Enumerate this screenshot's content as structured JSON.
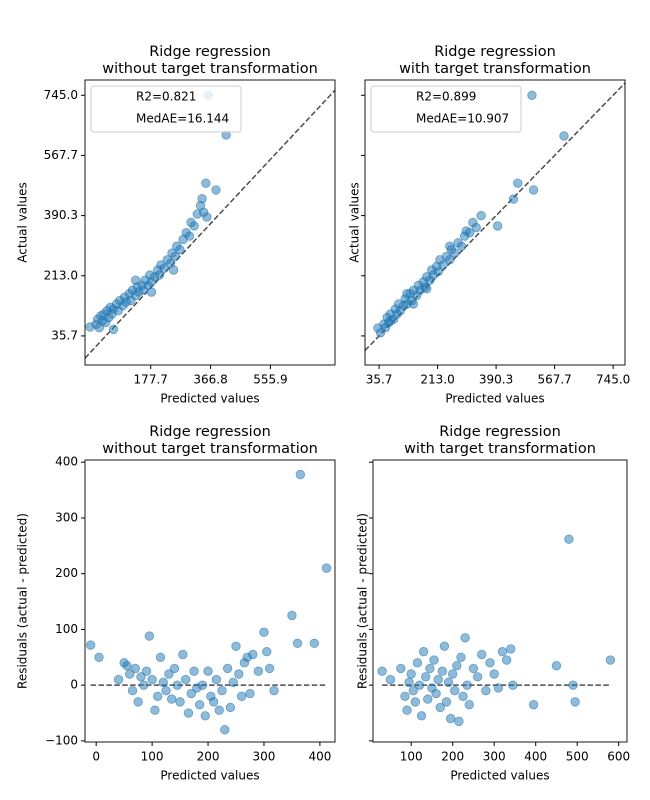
{
  "chart_data": [
    {
      "type": "scatter",
      "title": [
        "Ridge regression",
        "without target transformation"
      ],
      "x_label": "Predicted values",
      "y_label": "Actual values",
      "legend": [
        "R2=0.821",
        "MedAE=16.144"
      ],
      "legend_loc": "upper left",
      "reference": "diagonal",
      "color": "#1f77b4",
      "show_ytick_labels": true,
      "xlim": [
        -30,
        760
      ],
      "ylim": [
        -50,
        790
      ],
      "xticks": [
        177.7,
        366.8,
        555.9
      ],
      "yticks": [
        35.7,
        {
          "value": 213,
          "label": "213.0"
        },
        390.3,
        567.7,
        {
          "value": 745,
          "label": "745.0"
        }
      ],
      "x": [
        -14,
        5,
        10,
        15,
        20,
        25,
        30,
        35,
        40,
        45,
        50,
        55,
        60,
        70,
        75,
        80,
        90,
        95,
        100,
        110,
        115,
        120,
        130,
        135,
        140,
        150,
        155,
        160,
        170,
        175,
        180,
        190,
        200,
        205,
        210,
        220,
        230,
        240,
        245,
        255,
        260,
        270,
        280,
        290,
        300,
        305,
        315,
        325,
        335,
        340,
        345,
        352,
        359,
        384,
        416,
        355,
        60,
        130,
        180,
        250
      ],
      "y": [
        62,
        70,
        85,
        60,
        95,
        80,
        100,
        75,
        110,
        90,
        120,
        100,
        115,
        130,
        110,
        140,
        125,
        150,
        135,
        160,
        140,
        170,
        155,
        180,
        165,
        185,
        170,
        200,
        185,
        215,
        195,
        210,
        230,
        215,
        245,
        235,
        260,
        250,
        280,
        270,
        300,
        290,
        320,
        340,
        330,
        370,
        360,
        395,
        420,
        440,
        400,
        486,
        745,
        466,
        628,
        386,
        55,
        200,
        165,
        230
      ]
    },
    {
      "type": "scatter",
      "title": [
        "Ridge regression",
        "with target transformation"
      ],
      "x_label": "Predicted values",
      "y_label": "Actual values",
      "legend": [
        "R2=0.899",
        "MedAE=10.907"
      ],
      "legend_loc": "upper left",
      "reference": "diagonal",
      "color": "#1f77b4",
      "show_ytick_labels": false,
      "xlim": [
        -7,
        781
      ],
      "ylim": [
        -50,
        790
      ],
      "xticks": [
        35.7,
        {
          "value": 213,
          "label": "213.0"
        },
        390.3,
        567.7,
        {
          "value": 745,
          "label": "745.0"
        }
      ],
      "yticks": [
        35.7,
        213,
        390.3,
        567.7,
        745
      ],
      "x": [
        32,
        40,
        50,
        55,
        60,
        65,
        70,
        80,
        85,
        90,
        95,
        100,
        110,
        115,
        120,
        130,
        135,
        140,
        150,
        155,
        160,
        170,
        175,
        180,
        190,
        195,
        200,
        210,
        215,
        220,
        230,
        240,
        250,
        255,
        265,
        275,
        285,
        295,
        300,
        310,
        320,
        330,
        345,
        395,
        443,
        456,
        504,
        499,
        596,
        120,
        180,
        250,
        70,
        140
      ],
      "y": [
        59,
        45,
        70,
        60,
        90,
        75,
        100,
        85,
        115,
        100,
        130,
        110,
        125,
        145,
        130,
        160,
        140,
        170,
        155,
        185,
        170,
        195,
        180,
        210,
        200,
        230,
        215,
        240,
        225,
        260,
        245,
        270,
        260,
        290,
        280,
        310,
        300,
        330,
        345,
        340,
        370,
        355,
        390,
        360,
        439,
        486,
        466,
        745,
        625,
        160,
        175,
        300,
        80,
        130
      ]
    },
    {
      "type": "scatter",
      "title": [
        "Ridge regression",
        "without target transformation"
      ],
      "x_label": "Predicted values",
      "y_label": "Residuals (actual - predicted)",
      "reference": "zero",
      "color": "#1f77b4",
      "show_ytick_labels": true,
      "xlim": [
        -20,
        427
      ],
      "ylim": [
        -102,
        404
      ],
      "xticks": [
        0,
        100,
        200,
        300,
        400
      ],
      "yticks": [
        {
          "value": -100,
          "label": "−100"
        },
        0,
        100,
        200,
        300,
        400
      ],
      "x": [
        -10,
        5,
        40,
        50,
        55,
        60,
        65,
        70,
        75,
        80,
        85,
        90,
        95,
        100,
        105,
        110,
        115,
        120,
        125,
        130,
        135,
        140,
        145,
        150,
        155,
        160,
        165,
        170,
        175,
        180,
        185,
        190,
        195,
        200,
        205,
        210,
        215,
        220,
        225,
        230,
        235,
        240,
        245,
        250,
        255,
        260,
        265,
        270,
        275,
        280,
        290,
        300,
        305,
        310,
        318,
        350,
        360,
        365,
        390,
        412
      ],
      "y": [
        72,
        50,
        10,
        40,
        35,
        20,
        -10,
        30,
        -30,
        15,
        0,
        25,
        88,
        10,
        -45,
        -20,
        50,
        5,
        -10,
        20,
        -25,
        30,
        0,
        -30,
        55,
        10,
        -50,
        -15,
        25,
        -5,
        -35,
        0,
        -55,
        25,
        -20,
        -30,
        10,
        -45,
        -10,
        -80,
        30,
        -40,
        5,
        70,
        20,
        -20,
        40,
        50,
        -15,
        55,
        25,
        95,
        60,
        30,
        -10,
        125,
        75,
        378,
        75,
        210
      ]
    },
    {
      "type": "scatter",
      "title": [
        "Ridge regression",
        "with target transformation"
      ],
      "x_label": "Predicted values",
      "y_label": "Residuals (actual - predicted)",
      "reference": "zero",
      "color": "#1f77b4",
      "show_ytick_labels": false,
      "xlim": [
        8,
        620
      ],
      "ylim": [
        -102,
        404
      ],
      "xticks": [
        100,
        200,
        300,
        400,
        500,
        600
      ],
      "yticks": [
        -100,
        0,
        100,
        200,
        300,
        400
      ],
      "x": [
        30,
        50,
        75,
        85,
        90,
        95,
        100,
        105,
        110,
        115,
        120,
        125,
        130,
        135,
        140,
        145,
        150,
        155,
        160,
        165,
        170,
        175,
        180,
        185,
        190,
        195,
        200,
        205,
        210,
        215,
        220,
        225,
        230,
        235,
        240,
        250,
        260,
        270,
        280,
        290,
        300,
        310,
        320,
        330,
        340,
        345,
        395,
        450,
        480,
        490,
        495,
        580
      ],
      "y": [
        25,
        10,
        30,
        -20,
        -45,
        5,
        20,
        -10,
        -30,
        40,
        0,
        -55,
        60,
        15,
        -25,
        30,
        -5,
        45,
        -15,
        10,
        -40,
        25,
        70,
        -30,
        5,
        -60,
        20,
        -10,
        35,
        -65,
        50,
        -20,
        85,
        0,
        -35,
        30,
        15,
        55,
        -10,
        40,
        20,
        -5,
        60,
        45,
        65,
        0,
        -35,
        35,
        262,
        0,
        -30,
        45
      ]
    }
  ]
}
